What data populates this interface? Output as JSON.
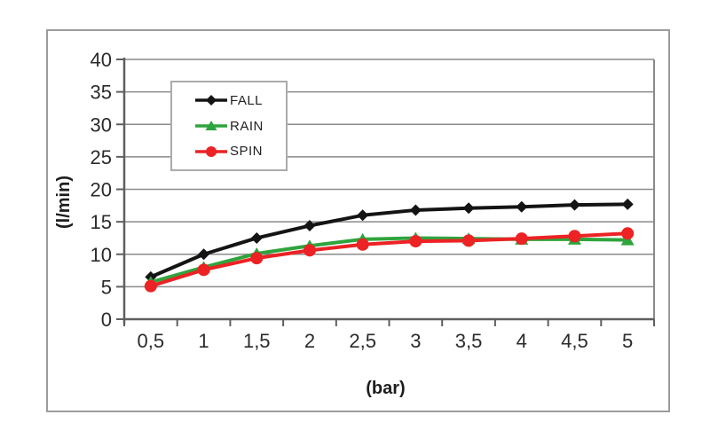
{
  "chart_data": {
    "type": "line",
    "title": "",
    "xlabel": "(bar)",
    "ylabel": "(l/min)",
    "x_tick_labels": [
      "0,5",
      "1",
      "1,5",
      "2",
      "2,5",
      "3",
      "3,5",
      "4",
      "4,5",
      "5"
    ],
    "categories": [
      0.5,
      1,
      1.5,
      2,
      2.5,
      3,
      3.5,
      4,
      4.5,
      5
    ],
    "y_ticks": [
      0,
      5,
      10,
      15,
      20,
      25,
      30,
      35,
      40
    ],
    "ylim": [
      0,
      40
    ],
    "grid": true,
    "legend_position": "upper-left-inside",
    "series": [
      {
        "name": "FALL",
        "color": "#141414",
        "marker": "diamond",
        "values": [
          6.5,
          10.0,
          12.5,
          14.4,
          16.0,
          16.8,
          17.1,
          17.3,
          17.6,
          17.7
        ]
      },
      {
        "name": "RAIN",
        "color": "#2fa43d",
        "marker": "triangle",
        "values": [
          5.7,
          8.0,
          10.1,
          11.3,
          12.3,
          12.5,
          12.4,
          12.3,
          12.3,
          12.2
        ]
      },
      {
        "name": "SPIN",
        "color": "#ec2224",
        "marker": "circle",
        "values": [
          5.1,
          7.6,
          9.4,
          10.6,
          11.5,
          12.0,
          12.1,
          12.4,
          12.8,
          13.2
        ]
      }
    ],
    "style": {
      "gridline_color": "#8a8a8a",
      "axis_color": "#5f5f5f",
      "frame_color": "#9c9c9c",
      "text_color": "#2b2b2b"
    }
  }
}
